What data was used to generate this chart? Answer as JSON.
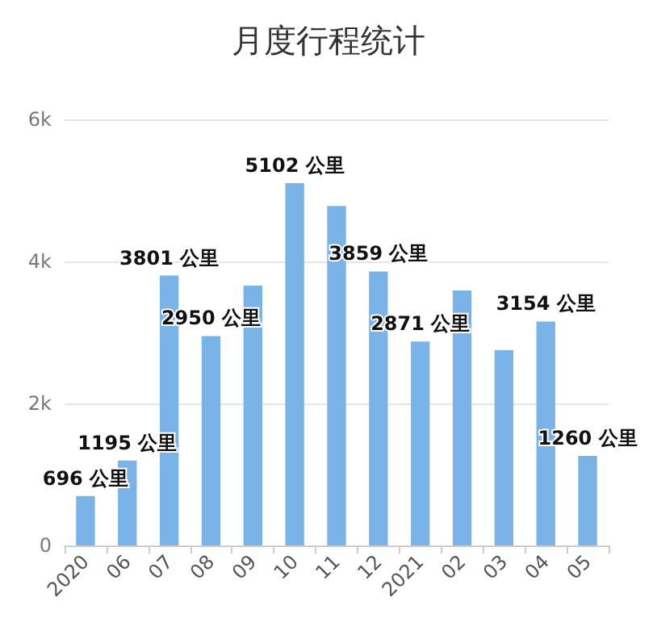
{
  "chart_data": {
    "type": "bar",
    "title": "月度行程统计",
    "categories": [
      "2020",
      "06",
      "07",
      "08",
      "09",
      "10",
      "11",
      "12",
      "2021",
      "02",
      "03",
      "04",
      "05"
    ],
    "values": [
      696,
      1195,
      3801,
      2950,
      3660,
      5102,
      4780,
      3859,
      2871,
      3590,
      2750,
      3154,
      1260
    ],
    "value_labels": [
      "696 公里",
      "1195 公里",
      "3801 公里",
      "2950 公里",
      null,
      "5102 公里",
      null,
      "3859 公里",
      "2871 公里",
      null,
      null,
      "3154 公里",
      "1260 公里"
    ],
    "color": "#7ab3e8",
    "ylim": [
      0,
      6000
    ],
    "yticks": [
      {
        "value": 0,
        "label": "0"
      },
      {
        "value": 2000,
        "label": "2k"
      },
      {
        "value": 4000,
        "label": "4k"
      },
      {
        "value": 6000,
        "label": "6k"
      }
    ],
    "grid": "y"
  }
}
